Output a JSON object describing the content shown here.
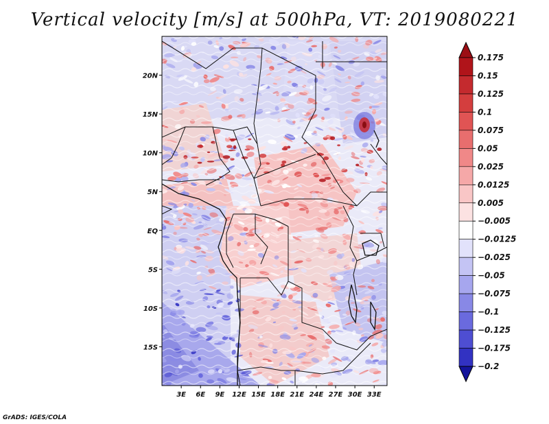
{
  "title": "Vertical velocity [m/s] at 500hPa, VT: 2019080221",
  "footer": "GrADS: IGES/COLA",
  "map": {
    "lon_range": [
      0,
      35
    ],
    "lat_range": [
      -20,
      25
    ],
    "lat_labels": [
      {
        "value": 20,
        "label": "20N"
      },
      {
        "value": 15,
        "label": "15N"
      },
      {
        "value": 10,
        "label": "10N"
      },
      {
        "value": 5,
        "label": "5N"
      },
      {
        "value": 0,
        "label": "EQ"
      },
      {
        "value": -5,
        "label": "5S"
      },
      {
        "value": -10,
        "label": "10S"
      },
      {
        "value": -15,
        "label": "15S"
      }
    ],
    "lon_labels": [
      {
        "value": 3,
        "label": "3E"
      },
      {
        "value": 6,
        "label": "6E"
      },
      {
        "value": 9,
        "label": "9E"
      },
      {
        "value": 12,
        "label": "12E"
      },
      {
        "value": 15,
        "label": "15E"
      },
      {
        "value": 18,
        "label": "18E"
      },
      {
        "value": 21,
        "label": "21E"
      },
      {
        "value": 24,
        "label": "24E"
      },
      {
        "value": 27,
        "label": "27E"
      },
      {
        "value": 30,
        "label": "30E"
      },
      {
        "value": 33,
        "label": "33E"
      }
    ]
  },
  "colorbar": {
    "levels": [
      {
        "label": "0.175",
        "color": "#b0141a"
      },
      {
        "label": "0.15",
        "color": "#c42a2e"
      },
      {
        "label": "0.125",
        "color": "#d43e3e"
      },
      {
        "label": "0.1",
        "color": "#e05454"
      },
      {
        "label": "0.075",
        "color": "#e86e6e"
      },
      {
        "label": "0.05",
        "color": "#f08888"
      },
      {
        "label": "0.025",
        "color": "#f5a8a8"
      },
      {
        "label": "0.0125",
        "color": "#f9c6c6"
      },
      {
        "label": "0.005",
        "color": "#fce2e2"
      },
      {
        "label": "−0.005",
        "color": "#ffffff"
      },
      {
        "label": "−0.0125",
        "color": "#e2e2fb"
      },
      {
        "label": "−0.025",
        "color": "#c4c4f4"
      },
      {
        "label": "−0.05",
        "color": "#a6a6ee"
      },
      {
        "label": "−0.075",
        "color": "#8888e6"
      },
      {
        "label": "−0.1",
        "color": "#6a6ade"
      },
      {
        "label": "−0.125",
        "color": "#4e4ed2"
      },
      {
        "label": "−0.175",
        "color": "#3232c2"
      },
      {
        "label": "−0.2",
        "color": "#1c1cb0"
      }
    ],
    "top_color": "#9c0e14",
    "bottom_color": "#14149c"
  },
  "features": {
    "highlight": {
      "name": "cyclonic-feature",
      "lon": 31.5,
      "lat": 14.5
    }
  }
}
